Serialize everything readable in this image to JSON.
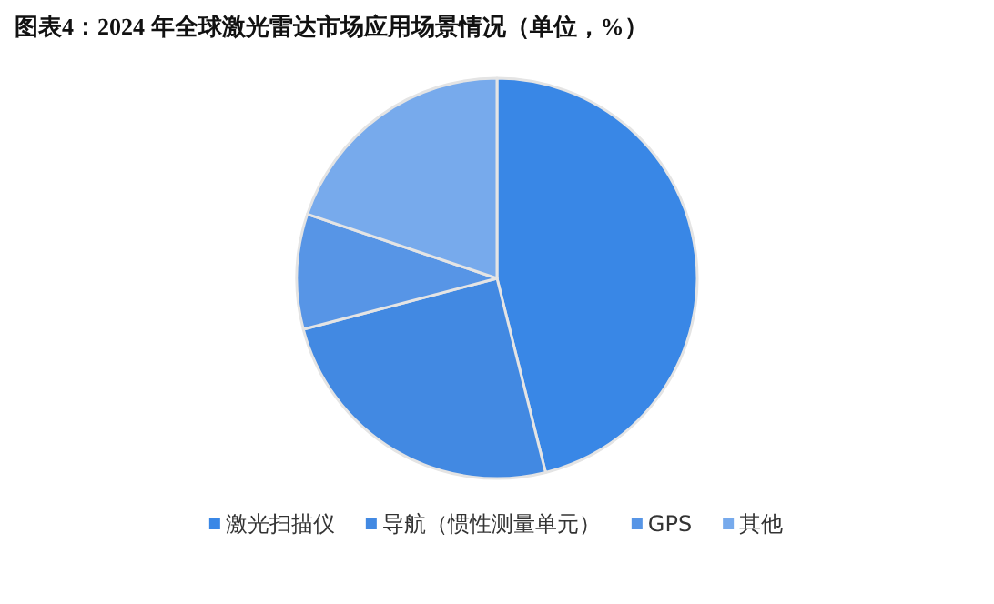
{
  "chart_data": {
    "type": "pie",
    "title": "图表4：2024 年全球激光雷达市场应用场景情况（单位，%）",
    "categories": [
      "激光扫描仪",
      "导航（惯性测量单元）",
      "GPS",
      "其他"
    ],
    "values": [
      46.1,
      24.8,
      9.3,
      19.8
    ],
    "colors": [
      "#3987e6",
      "#4289e2",
      "#5795e6",
      "#77aaec"
    ],
    "legend": "bottom"
  }
}
